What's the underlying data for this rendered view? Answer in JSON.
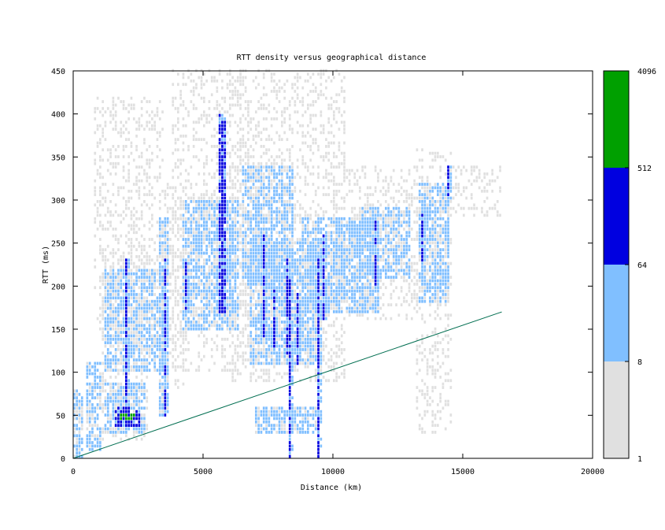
{
  "chart_data": {
    "type": "heatmap",
    "title": "RTT density versus geographical distance",
    "xlabel": "Distance (km)",
    "ylabel": "RTT (ms)",
    "xlim": [
      0,
      20000
    ],
    "ylim": [
      0,
      450
    ],
    "x_ticks": [
      "0",
      "5000",
      "10000",
      "15000",
      "20000"
    ],
    "y_ticks": [
      "0",
      "50",
      "100",
      "150",
      "200",
      "250",
      "300",
      "350",
      "400",
      "450"
    ],
    "grid": false,
    "colorbar": {
      "scale": "log",
      "ticks": [
        "1",
        "8",
        "64",
        "512",
        "4096"
      ],
      "bands": [
        {
          "from": 1,
          "to": 8,
          "color": "#e0e0e0"
        },
        {
          "from": 8,
          "to": 64,
          "color": "#80bfff"
        },
        {
          "from": 64,
          "to": 512,
          "color": "#0000e0"
        },
        {
          "from": 512,
          "to": 4096,
          "color": "#00a000"
        }
      ]
    },
    "reference_line": {
      "color": "#006e50",
      "points": [
        [
          0,
          0
        ],
        [
          16500,
          170
        ]
      ]
    },
    "density_clusters": [
      {
        "x": [
          0,
          400
        ],
        "y": [
          0,
          80
        ],
        "level": 2
      },
      {
        "x": [
          500,
          1100
        ],
        "y": [
          10,
          110
        ],
        "level": 2
      },
      {
        "x": [
          1100,
          2900
        ],
        "y": [
          20,
          250
        ],
        "level": 1
      },
      {
        "x": [
          1200,
          2800
        ],
        "y": [
          30,
          85
        ],
        "level": 2
      },
      {
        "x": [
          1600,
          2600
        ],
        "y": [
          38,
          58
        ],
        "level": 3
      },
      {
        "x": [
          1800,
          2400
        ],
        "y": [
          44,
          52
        ],
        "level": 4
      },
      {
        "x": [
          1200,
          3600
        ],
        "y": [
          100,
          220
        ],
        "level": 2
      },
      {
        "x": [
          800,
          3500
        ],
        "y": [
          150,
          420
        ],
        "level": 1
      },
      {
        "x": [
          3300,
          3700
        ],
        "y": [
          50,
          280
        ],
        "level": 2
      },
      {
        "x": [
          3500,
          4300
        ],
        "y": [
          80,
          320
        ],
        "level": 1
      },
      {
        "x": [
          4200,
          6400
        ],
        "y": [
          150,
          300
        ],
        "level": 2
      },
      {
        "x": [
          3800,
          6800
        ],
        "y": [
          100,
          450
        ],
        "level": 1
      },
      {
        "x": [
          5600,
          5850
        ],
        "y": [
          170,
          400
        ],
        "level": 3
      },
      {
        "x": [
          6500,
          8500
        ],
        "y": [
          200,
          340
        ],
        "level": 2
      },
      {
        "x": [
          6800,
          9600
        ],
        "y": [
          110,
          250
        ],
        "level": 2
      },
      {
        "x": [
          7000,
          9500
        ],
        "y": [
          30,
          60
        ],
        "level": 2
      },
      {
        "x": [
          6000,
          10500
        ],
        "y": [
          90,
          450
        ],
        "level": 1
      },
      {
        "x": [
          8800,
          11800
        ],
        "y": [
          170,
          280
        ],
        "level": 2
      },
      {
        "x": [
          11000,
          13000
        ],
        "y": [
          210,
          290
        ],
        "level": 2
      },
      {
        "x": [
          10000,
          13500
        ],
        "y": [
          160,
          340
        ],
        "level": 1
      },
      {
        "x": [
          13200,
          14600
        ],
        "y": [
          30,
          360
        ],
        "level": 1
      },
      {
        "x": [
          13300,
          14500
        ],
        "y": [
          180,
          320
        ],
        "level": 2
      },
      {
        "x": [
          14500,
          16500
        ],
        "y": [
          280,
          340
        ],
        "level": 1
      }
    ],
    "vertical_streaks": [
      {
        "x": 5700,
        "y": [
          170,
          400
        ],
        "level": 3
      },
      {
        "x": 3500,
        "y": [
          50,
          230
        ],
        "level": 3
      },
      {
        "x": 7300,
        "y": [
          140,
          260
        ],
        "level": 3
      },
      {
        "x": 7700,
        "y": [
          120,
          210
        ],
        "level": 3
      },
      {
        "x": 8200,
        "y": [
          120,
          230
        ],
        "level": 3
      },
      {
        "x": 8300,
        "y": [
          0,
          210
        ],
        "level": 3
      },
      {
        "x": 8600,
        "y": [
          110,
          190
        ],
        "level": 3
      },
      {
        "x": 9400,
        "y": [
          0,
          230
        ],
        "level": 3
      },
      {
        "x": 9600,
        "y": [
          160,
          260
        ],
        "level": 3
      },
      {
        "x": 11600,
        "y": [
          200,
          280
        ],
        "level": 3
      },
      {
        "x": 13400,
        "y": [
          230,
          290
        ],
        "level": 3
      },
      {
        "x": 14400,
        "y": [
          300,
          340
        ],
        "level": 3
      },
      {
        "x": 2000,
        "y": [
          40,
          230
        ],
        "level": 3
      },
      {
        "x": 4300,
        "y": [
          170,
          230
        ],
        "level": 3
      }
    ]
  }
}
